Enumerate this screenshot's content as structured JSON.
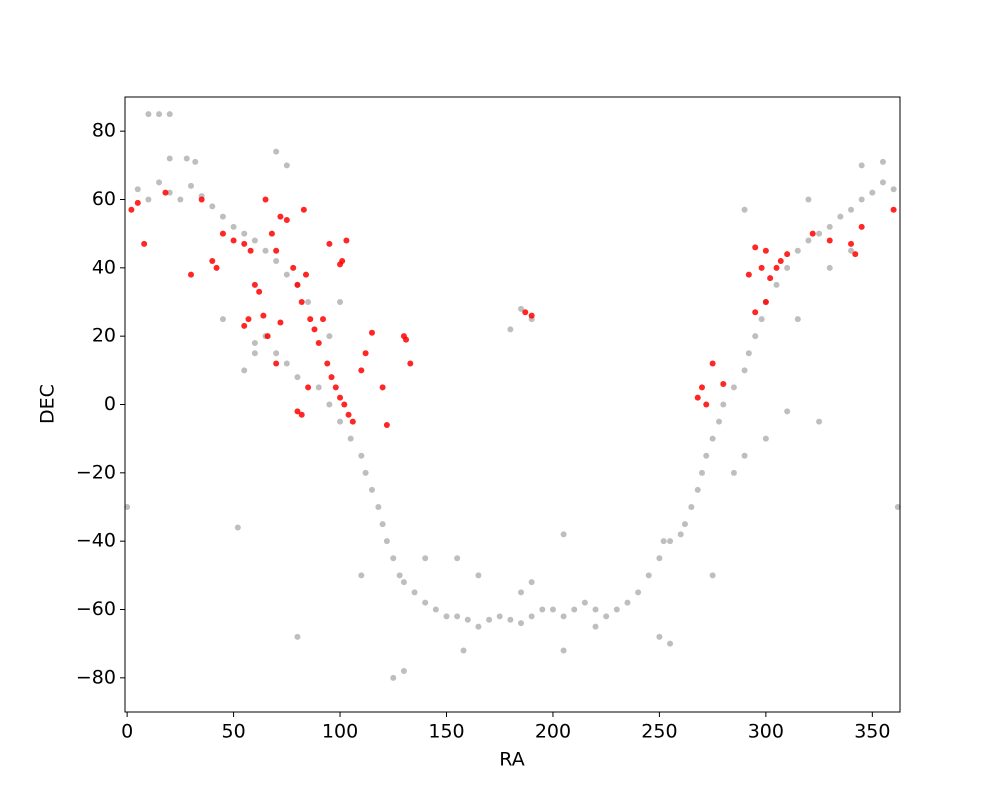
{
  "chart_data": {
    "type": "scatter",
    "xlabel": "RA",
    "ylabel": "DEC",
    "xlim": [
      -1,
      363
    ],
    "ylim": [
      -90,
      90
    ],
    "xticks": [
      0,
      50,
      100,
      150,
      200,
      250,
      300,
      350
    ],
    "yticks": [
      {
        "value": -80,
        "label": "−80"
      },
      {
        "value": -60,
        "label": "−60"
      },
      {
        "value": -40,
        "label": "−40"
      },
      {
        "value": -20,
        "label": "−20"
      },
      0,
      20,
      40,
      60,
      80
    ],
    "series": [
      {
        "color": "#b3b3b3",
        "x": [
          5,
          10,
          15,
          20,
          25,
          30,
          35,
          40,
          45,
          50,
          55,
          60,
          65,
          70,
          75,
          80,
          85,
          65,
          70,
          60,
          75,
          80,
          90,
          95,
          100,
          105,
          110,
          112,
          115,
          118,
          120,
          122,
          125,
          128,
          130,
          135,
          140,
          145,
          150,
          155,
          160,
          165,
          170,
          175,
          180,
          185,
          190,
          195,
          200,
          205,
          210,
          215,
          220,
          225,
          230,
          235,
          240,
          245,
          250,
          252,
          255,
          260,
          262,
          265,
          268,
          270,
          272,
          275,
          278,
          280,
          285,
          290,
          292,
          295,
          298,
          300,
          305,
          310,
          315,
          320,
          325,
          330,
          335,
          340,
          345,
          350,
          355,
          360,
          15,
          10,
          20,
          28,
          32,
          70,
          75,
          0,
          362,
          52,
          80,
          158,
          185,
          190,
          205,
          220,
          255,
          250,
          275,
          290,
          285,
          185,
          190,
          180,
          45,
          55,
          60,
          110,
          140,
          155,
          165,
          205,
          125,
          130,
          310,
          290,
          320,
          345,
          355,
          20,
          100,
          95,
          325,
          330,
          340,
          315,
          300
        ],
        "y": [
          63,
          60,
          65,
          62,
          60,
          64,
          61,
          58,
          55,
          52,
          50,
          48,
          45,
          42,
          38,
          35,
          30,
          20,
          15,
          18,
          12,
          8,
          5,
          0,
          -5,
          -10,
          -15,
          -20,
          -25,
          -30,
          -35,
          -40,
          -45,
          -50,
          -52,
          -55,
          -58,
          -60,
          -62,
          -62,
          -63,
          -65,
          -63,
          -62,
          -63,
          -64,
          -62,
          -60,
          -60,
          -62,
          -60,
          -58,
          -60,
          -62,
          -60,
          -58,
          -55,
          -50,
          -45,
          -40,
          -40,
          -38,
          -35,
          -30,
          -25,
          -20,
          -15,
          -10,
          -5,
          0,
          5,
          10,
          15,
          20,
          25,
          30,
          35,
          40,
          45,
          48,
          50,
          52,
          55,
          57,
          60,
          62,
          65,
          63,
          85,
          85,
          85,
          72,
          71,
          74,
          70,
          -30,
          -30,
          -36,
          -68,
          -72,
          -55,
          -52,
          -38,
          -65,
          -70,
          -68,
          -50,
          -15,
          -20,
          28,
          25,
          22,
          25,
          10,
          15,
          -50,
          -45,
          -45,
          -50,
          -72,
          -80,
          -78,
          -2,
          57,
          60,
          70,
          71,
          72,
          30,
          20,
          -5,
          40,
          45,
          25,
          -10
        ]
      },
      {
        "color": "#ff0000",
        "x": [
          2,
          5,
          8,
          18,
          30,
          35,
          40,
          42,
          45,
          50,
          55,
          58,
          55,
          57,
          60,
          62,
          65,
          68,
          70,
          72,
          75,
          78,
          80,
          82,
          84,
          86,
          88,
          90,
          92,
          94,
          96,
          98,
          100,
          102,
          104,
          106,
          100,
          101,
          95,
          103,
          83,
          85,
          80,
          82,
          115,
          120,
          122,
          130,
          131,
          133,
          110,
          112,
          187,
          190,
          268,
          270,
          272,
          275,
          280,
          292,
          295,
          298,
          300,
          302,
          305,
          307,
          310,
          300,
          295,
          322,
          330,
          340,
          342,
          345,
          360,
          70,
          72,
          66,
          64
        ],
        "y": [
          57,
          59,
          47,
          62,
          38,
          60,
          42,
          40,
          50,
          48,
          47,
          45,
          23,
          25,
          35,
          33,
          60,
          50,
          45,
          55,
          54,
          40,
          35,
          30,
          38,
          25,
          22,
          18,
          25,
          12,
          8,
          5,
          2,
          0,
          -3,
          -5,
          41,
          42,
          47,
          48,
          57,
          5,
          -2,
          -3,
          21,
          5,
          -6,
          20,
          19,
          12,
          10,
          15,
          27,
          26,
          2,
          5,
          0,
          12,
          6,
          38,
          46,
          40,
          45,
          37,
          40,
          42,
          44,
          30,
          27,
          50,
          48,
          47,
          44,
          52,
          57,
          12,
          24,
          20,
          26
        ]
      }
    ]
  }
}
